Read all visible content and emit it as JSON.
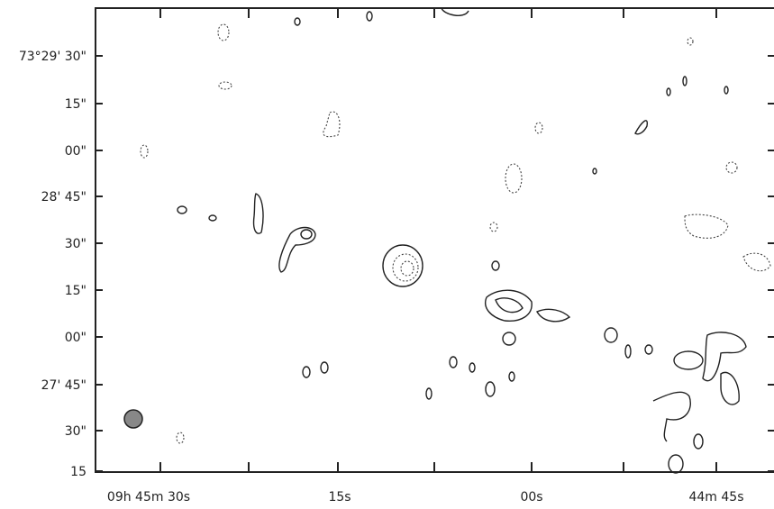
{
  "y_axis": {
    "tick_labels": [
      "73°29' 30\"",
      "15\"",
      "00\"",
      "28' 45\"",
      "30\"",
      "15\"",
      "00\"",
      "27' 45\"",
      "30\"",
      "15"
    ]
  },
  "x_axis": {
    "tick_labels": [
      "09h 45m 30s",
      "15s",
      "00s",
      "44m 45s"
    ]
  }
}
